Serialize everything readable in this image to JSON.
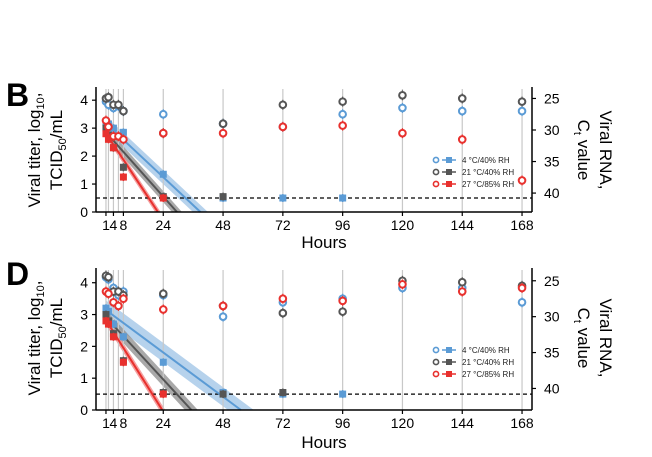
{
  "colors": {
    "c4": "#5b9bd5",
    "c21": "#555555",
    "c27": "#e8312e",
    "band4": "#9dc3e6",
    "band21": "#8c8c8c",
    "band27": "#f08080"
  },
  "chart_data": [
    {
      "type": "scatter",
      "panel_label": "B",
      "xlabel": "Hours",
      "ylabel_left": "Viral titer, log10, TCID50/mL",
      "ylabel_right": "Viral RNA, Ct value",
      "xticks": [
        "1",
        "4",
        "8",
        "24",
        "48",
        "72",
        "96",
        "120",
        "144",
        "168"
      ],
      "xlim": [
        -3,
        172
      ],
      "ylim_left": [
        0,
        4.4
      ],
      "yticks_left": [
        "0",
        "1",
        "2",
        "3",
        "4"
      ],
      "ylim_right": [
        43,
        23.5
      ],
      "yticks_right": [
        "25",
        "30",
        "35",
        "40"
      ],
      "limit_of_detection": 0.5,
      "legend": {
        "position": "center-right",
        "entries": [
          "4 °C/40% RH",
          "21 °C/40% RH",
          "27 °C/85% RH"
        ]
      },
      "series": [
        {
          "name": "4 °C/40% RH",
          "titer": [
            [
              1,
              3.2
            ],
            [
              2,
              3.15
            ],
            [
              4,
              3.0
            ],
            [
              8,
              2.85
            ],
            [
              24,
              1.35
            ],
            [
              48,
              0.5
            ],
            [
              72,
              0.5
            ],
            [
              96,
              0.5
            ]
          ],
          "rna": [
            [
              1,
              25.5
            ],
            [
              2,
              26.0
            ],
            [
              4,
              26.5
            ],
            [
              6,
              26.2
            ],
            [
              8,
              27.0
            ],
            [
              24,
              27.5
            ],
            [
              48,
              29.0
            ],
            [
              72,
              29.5
            ],
            [
              96,
              27.5
            ],
            [
              120,
              26.5
            ],
            [
              144,
              27.0
            ],
            [
              168,
              27.0
            ]
          ],
          "fit": {
            "intercept": 3.25,
            "slope": -0.0835,
            "band": 0.25
          }
        },
        {
          "name": "21 °C/40% RH",
          "titer": [
            [
              1,
              3.0
            ],
            [
              2,
              2.75
            ],
            [
              4,
              2.3
            ],
            [
              8,
              1.6
            ],
            [
              24,
              0.55
            ],
            [
              48,
              0.55
            ]
          ],
          "rna": [
            [
              1,
              25.0
            ],
            [
              2,
              24.8
            ],
            [
              4,
              26.0
            ],
            [
              6,
              26.0
            ],
            [
              8,
              27.0
            ],
            [
              24,
              30.5
            ],
            [
              48,
              29.0
            ],
            [
              72,
              26.0
            ],
            [
              96,
              25.5
            ],
            [
              120,
              24.5
            ],
            [
              144,
              25.0
            ],
            [
              168,
              25.5
            ]
          ],
          "fit": {
            "intercept": 2.95,
            "slope": -0.1,
            "band": 0.2
          }
        },
        {
          "name": "27 °C/85% RH",
          "titer": [
            [
              1,
              2.8
            ],
            [
              2,
              2.6
            ],
            [
              4,
              2.3
            ],
            [
              8,
              1.25
            ],
            [
              24,
              0.5
            ]
          ],
          "rna": [
            [
              1,
              28.5
            ],
            [
              2,
              29.5
            ],
            [
              4,
              31.0
            ],
            [
              6,
              31.0
            ],
            [
              8,
              31.5
            ],
            [
              24,
              30.5
            ],
            [
              48,
              30.5
            ],
            [
              72,
              29.5
            ],
            [
              96,
              29.3
            ],
            [
              120,
              30.5
            ],
            [
              144,
              31.5
            ],
            [
              168,
              38.0
            ]
          ],
          "fit": {
            "intercept": 2.95,
            "slope": -0.135,
            "band": 0.15
          }
        }
      ]
    },
    {
      "type": "scatter",
      "panel_label": "D",
      "xlabel": "Hours",
      "ylabel_left": "Viral titer, log10, TCID50/mL",
      "ylabel_right": "Viral RNA, Ct value",
      "xticks": [
        "1",
        "4",
        "8",
        "24",
        "48",
        "72",
        "96",
        "120",
        "144",
        "168"
      ],
      "xlim": [
        -3,
        172
      ],
      "ylim_left": [
        0,
        4.4
      ],
      "yticks_left": [
        "0",
        "1",
        "2",
        "3",
        "4"
      ],
      "ylim_right": [
        43,
        23.5
      ],
      "yticks_right": [
        "25",
        "30",
        "35",
        "40"
      ],
      "limit_of_detection": 0.5,
      "legend": {
        "position": "center-right",
        "entries": [
          "4 °C/40% RH",
          "21 °C/40% RH",
          "27 °C/85% RH"
        ]
      },
      "series": [
        {
          "name": "4 °C/40% RH",
          "titer": [
            [
              1,
              3.2
            ],
            [
              2,
              3.1
            ],
            [
              4,
              2.7
            ],
            [
              8,
              2.3
            ],
            [
              24,
              1.5
            ],
            [
              48,
              0.55
            ],
            [
              72,
              0.5
            ],
            [
              96,
              0.5
            ]
          ],
          "rna": [
            [
              1,
              24.5
            ],
            [
              2,
              24.8
            ],
            [
              4,
              26.0
            ],
            [
              6,
              27.0
            ],
            [
              8,
              26.5
            ],
            [
              24,
              27.0
            ],
            [
              48,
              30.0
            ],
            [
              72,
              28.0
            ],
            [
              96,
              27.5
            ],
            [
              120,
              26.0
            ],
            [
              144,
              26.0
            ],
            [
              168,
              28.0
            ]
          ],
          "fit": {
            "intercept": 3.2,
            "slope": -0.058,
            "band": 0.3
          }
        },
        {
          "name": "21 °C/40% RH",
          "titer": [
            [
              1,
              3.0
            ],
            [
              2,
              2.8
            ],
            [
              4,
              2.4
            ],
            [
              8,
              1.55
            ],
            [
              24,
              0.55
            ],
            [
              48,
              0.5
            ],
            [
              72,
              0.55
            ]
          ],
          "rna": [
            [
              1,
              24.3
            ],
            [
              2,
              24.5
            ],
            [
              4,
              26.5
            ],
            [
              6,
              26.5
            ],
            [
              8,
              27.0
            ],
            [
              24,
              26.8
            ],
            [
              48,
              28.5
            ],
            [
              72,
              29.5
            ],
            [
              96,
              29.3
            ],
            [
              120,
              25.0
            ],
            [
              144,
              25.2
            ],
            [
              168,
              25.7
            ]
          ],
          "fit": {
            "intercept": 3.0,
            "slope": -0.085,
            "band": 0.22
          }
        },
        {
          "name": "27 °C/85% RH",
          "titer": [
            [
              1,
              2.8
            ],
            [
              2,
              2.7
            ],
            [
              4,
              2.3
            ],
            [
              8,
              1.5
            ],
            [
              24,
              0.5
            ]
          ],
          "rna": [
            [
              1,
              26.5
            ],
            [
              2,
              26.8
            ],
            [
              4,
              28.0
            ],
            [
              6,
              28.5
            ],
            [
              8,
              27.5
            ],
            [
              24,
              29.0
            ],
            [
              48,
              28.5
            ],
            [
              72,
              27.5
            ],
            [
              96,
              27.8
            ],
            [
              120,
              25.5
            ],
            [
              144,
              26.5
            ],
            [
              168,
              26.0
            ]
          ],
          "fit": {
            "intercept": 2.95,
            "slope": -0.125,
            "band": 0.15
          }
        }
      ]
    }
  ]
}
